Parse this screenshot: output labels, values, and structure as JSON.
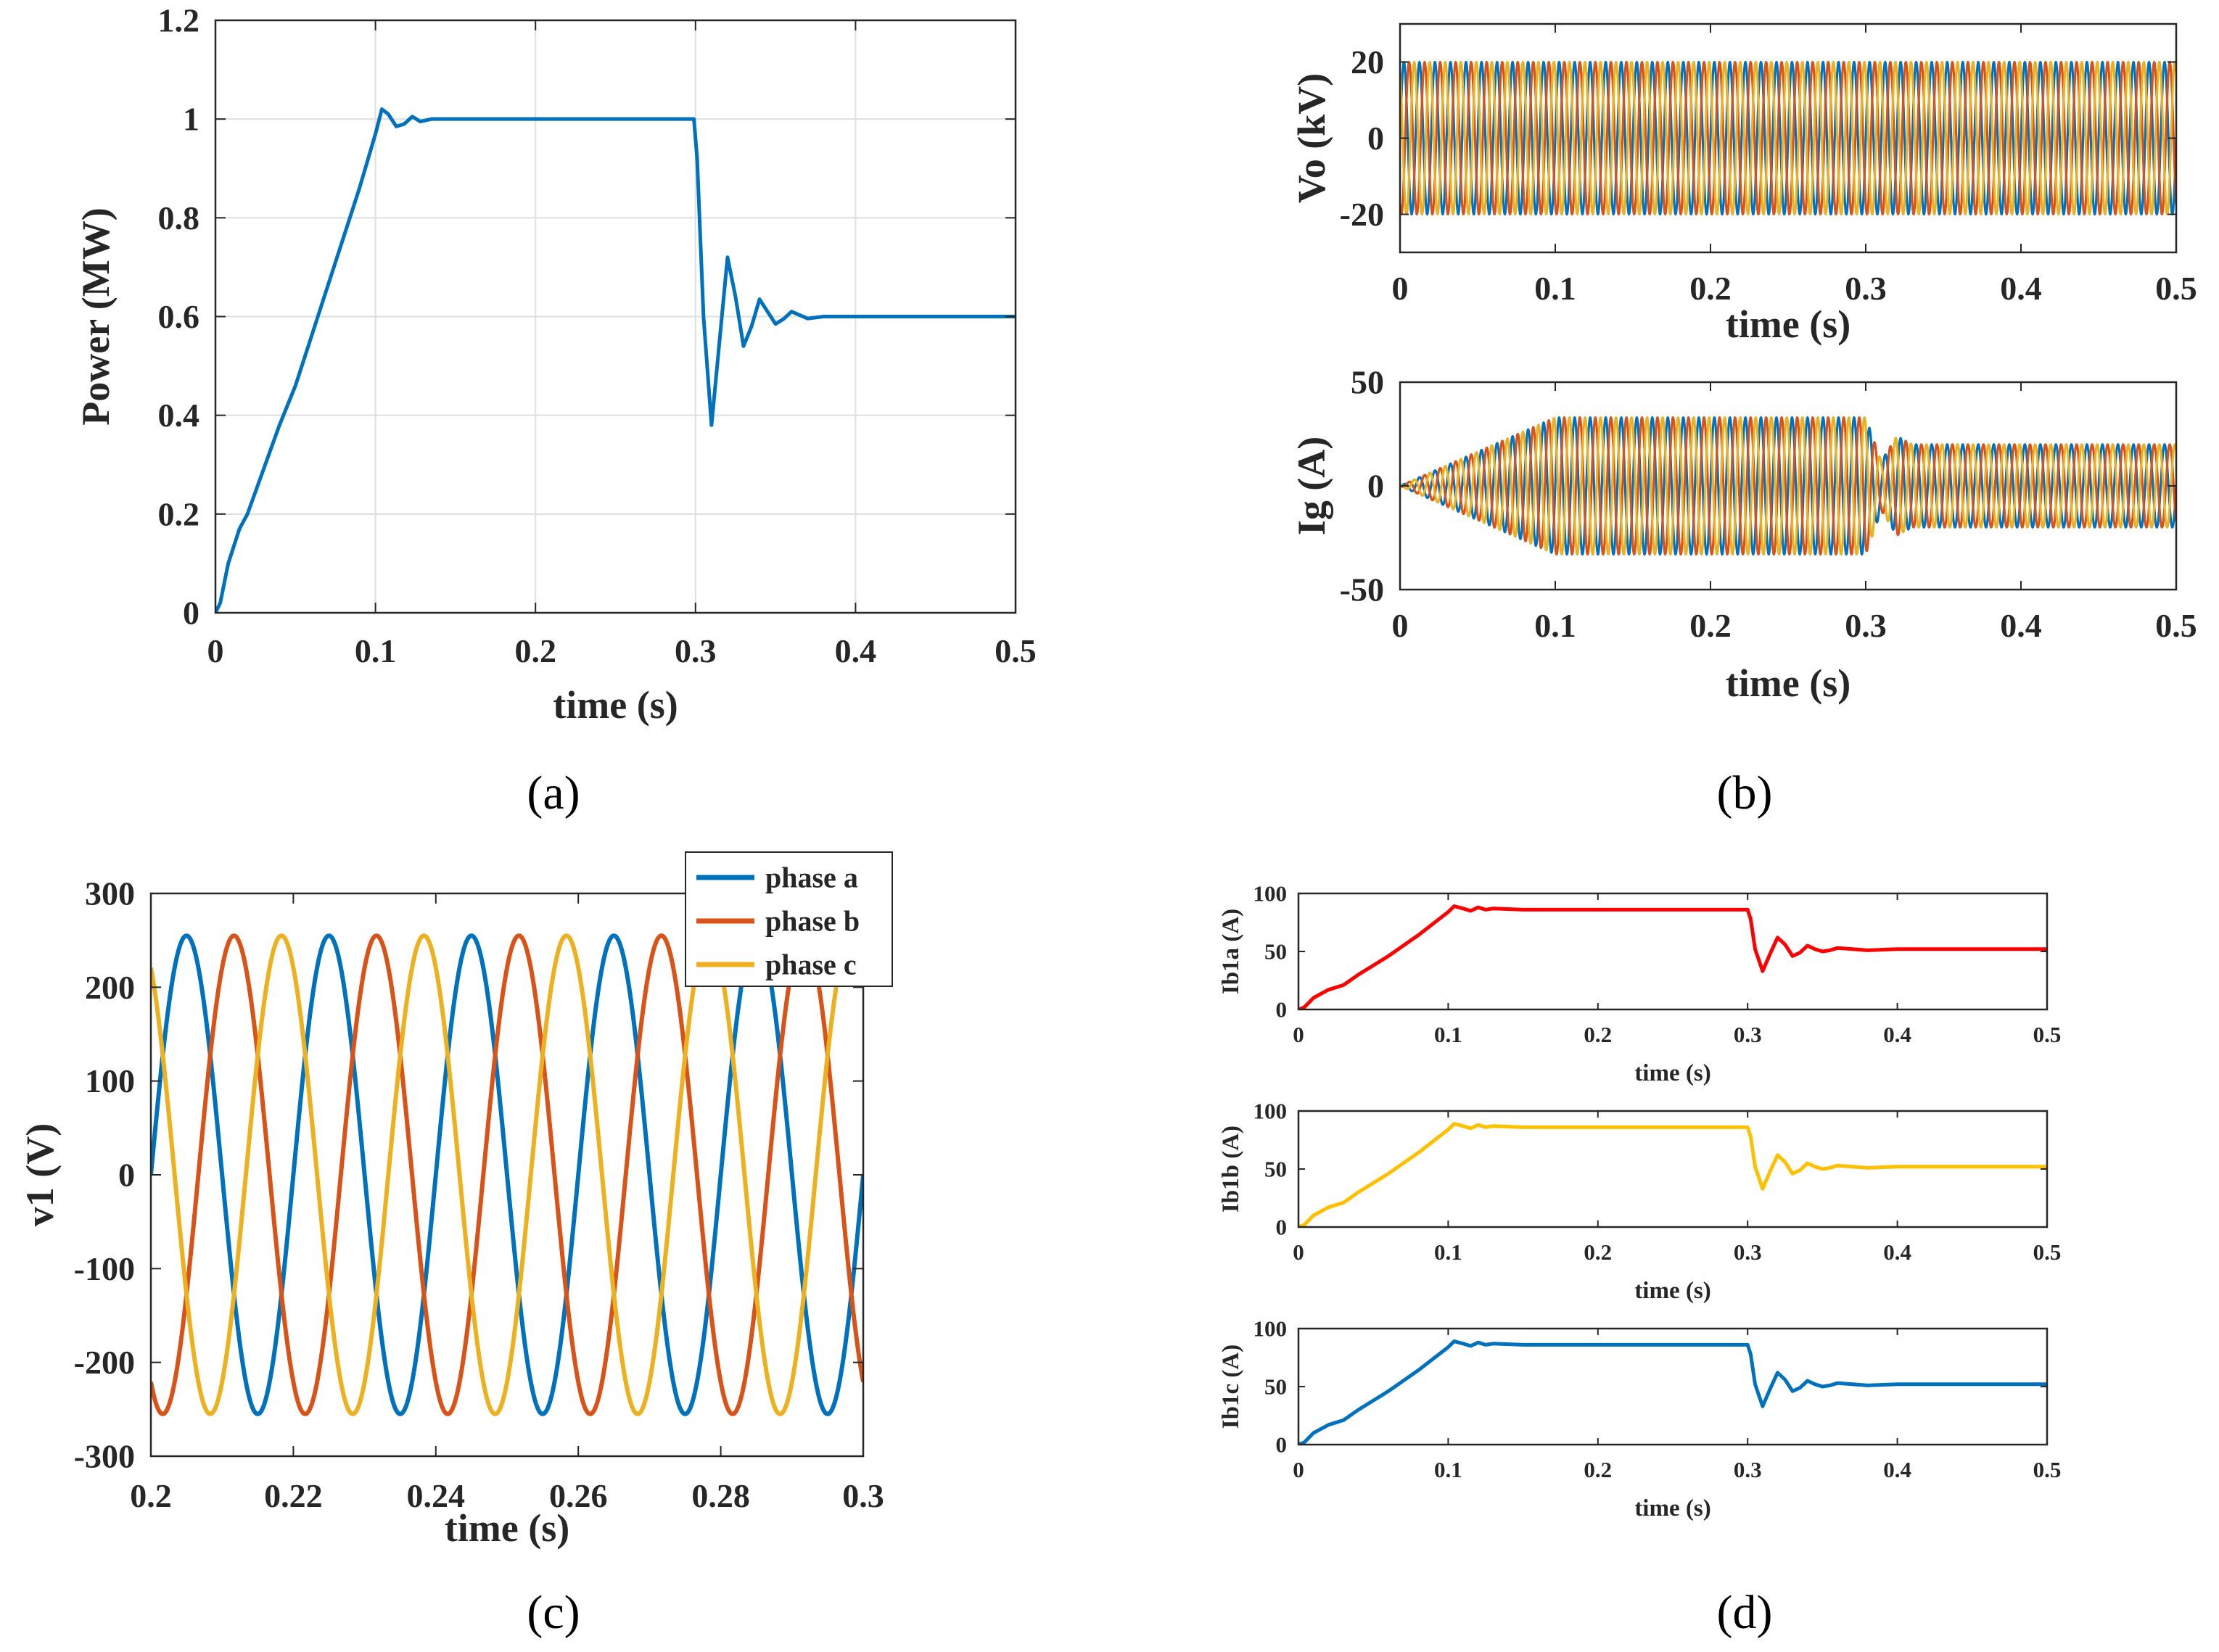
{
  "colors": {
    "blue": "#0072BD",
    "orange": "#D95319",
    "yellow": "#EDB120",
    "red": "#FF0000",
    "gold": "#FFC000",
    "grid": "#DFDFDF",
    "axis": "#262626"
  },
  "chart_data": [
    {
      "id": "a",
      "caption": "(a)",
      "type": "line",
      "xlabel": "time (s)",
      "ylabel": "Power (MW)",
      "xlim": [
        0,
        0.5
      ],
      "ylim": [
        0,
        1.2
      ],
      "xticks": [
        "0",
        "0.1",
        "0.2",
        "0.3",
        "0.4",
        "0.5"
      ],
      "yticks": [
        "0",
        "0.2",
        "0.4",
        "0.6",
        "0.8",
        "1",
        "1.2"
      ],
      "grid": true,
      "series": [
        {
          "name": "Power",
          "color": "#0072BD",
          "x": [
            0,
            0.003,
            0.008,
            0.015,
            0.02,
            0.03,
            0.04,
            0.05,
            0.06,
            0.07,
            0.08,
            0.09,
            0.1,
            0.104,
            0.108,
            0.113,
            0.118,
            0.123,
            0.128,
            0.135,
            0.145,
            0.16,
            0.2,
            0.25,
            0.299,
            0.301,
            0.305,
            0.31,
            0.315,
            0.32,
            0.325,
            0.33,
            0.335,
            0.34,
            0.345,
            0.35,
            0.355,
            0.36,
            0.365,
            0.37,
            0.38,
            0.39,
            0.4,
            0.42,
            0.45,
            0.5
          ],
          "y": [
            0,
            0.02,
            0.1,
            0.17,
            0.2,
            0.29,
            0.38,
            0.46,
            0.56,
            0.66,
            0.76,
            0.86,
            0.97,
            1.02,
            1.01,
            0.985,
            0.99,
            1.005,
            0.995,
            1.0,
            1.0,
            1.0,
            1.0,
            1.0,
            1.0,
            0.92,
            0.6,
            0.38,
            0.55,
            0.72,
            0.64,
            0.54,
            0.58,
            0.635,
            0.61,
            0.585,
            0.595,
            0.61,
            0.603,
            0.596,
            0.6,
            0.6,
            0.6,
            0.6,
            0.6,
            0.6
          ]
        }
      ]
    },
    {
      "id": "b1",
      "type": "line",
      "xlabel": "time (s)",
      "ylabel": "Vo (kV)",
      "xlim": [
        0,
        0.5
      ],
      "ylim": [
        -30,
        30
      ],
      "xticks": [
        "0",
        "0.1",
        "0.2",
        "0.3",
        "0.4",
        "0.5"
      ],
      "yticks": [
        "-20",
        "0",
        "20"
      ],
      "grid": false,
      "signal": {
        "kind": "three-phase-sine",
        "frequency_hz": 100,
        "amplitude_kv": 20
      },
      "series": [
        {
          "name": "phase a",
          "color": "#0072BD"
        },
        {
          "name": "phase b",
          "color": "#D95319"
        },
        {
          "name": "phase c",
          "color": "#EDB120"
        }
      ]
    },
    {
      "id": "b2",
      "caption": "(b)",
      "type": "line",
      "xlabel": "time (s)",
      "ylabel": "Ig (A)",
      "xlim": [
        0,
        0.5
      ],
      "ylim": [
        -50,
        50
      ],
      "xticks": [
        "0",
        "0.1",
        "0.2",
        "0.3",
        "0.4",
        "0.5"
      ],
      "yticks": [
        "-50",
        "0",
        "50"
      ],
      "grid": false,
      "signal": {
        "kind": "three-phase-sine",
        "frequency_hz": 100,
        "amplitude_envelope": {
          "t": [
            0,
            0.1,
            0.3,
            0.31,
            0.32,
            0.33,
            0.5
          ],
          "a": [
            0,
            33,
            33,
            12,
            24,
            20,
            20
          ]
        }
      },
      "series": [
        {
          "name": "phase a",
          "color": "#0072BD"
        },
        {
          "name": "phase b",
          "color": "#D95319"
        },
        {
          "name": "phase c",
          "color": "#EDB120"
        }
      ]
    },
    {
      "id": "c",
      "caption": "(c)",
      "type": "line",
      "xlabel": "time (s)",
      "ylabel": "v1 (V)",
      "xlim": [
        0.2,
        0.3
      ],
      "ylim": [
        -300,
        300
      ],
      "xticks": [
        "0.2",
        "0.22",
        "0.24",
        "0.26",
        "0.28",
        "0.3"
      ],
      "yticks": [
        "-300",
        "-200",
        "-100",
        "0",
        "100",
        "200",
        "300"
      ],
      "grid": false,
      "legend": {
        "position": "top-right",
        "entries": [
          "phase a",
          "phase b",
          "phase c"
        ]
      },
      "signal": {
        "kind": "three-phase-sine",
        "frequency_hz": 50,
        "amplitude_v": 255
      },
      "series": [
        {
          "name": "phase a",
          "color": "#0072BD"
        },
        {
          "name": "phase b",
          "color": "#D95319"
        },
        {
          "name": "phase c",
          "color": "#EDB120"
        }
      ]
    },
    {
      "id": "d1",
      "type": "line",
      "xlabel": "time (s)",
      "ylabel": "Ib1a (A)",
      "xlim": [
        0,
        0.5
      ],
      "ylim": [
        0,
        100
      ],
      "xticks": [
        "0",
        "0.1",
        "0.2",
        "0.3",
        "0.4",
        "0.5"
      ],
      "yticks": [
        "0",
        "50",
        "100"
      ],
      "grid": false,
      "series": [
        {
          "name": "Ib1a",
          "color": "#FF0000",
          "x": [
            0,
            0.004,
            0.01,
            0.02,
            0.03,
            0.04,
            0.06,
            0.08,
            0.1,
            0.104,
            0.11,
            0.115,
            0.12,
            0.125,
            0.13,
            0.15,
            0.2,
            0.25,
            0.3,
            0.302,
            0.305,
            0.31,
            0.315,
            0.32,
            0.325,
            0.33,
            0.335,
            0.34,
            0.345,
            0.35,
            0.355,
            0.36,
            0.37,
            0.38,
            0.4,
            0.45,
            0.5
          ],
          "y": [
            0,
            2,
            10,
            17,
            21,
            30,
            46,
            64,
            84,
            89,
            87,
            85,
            88,
            86,
            87,
            86,
            86,
            86,
            86,
            78,
            52,
            33,
            48,
            62,
            56,
            46,
            49,
            55,
            52,
            50,
            51,
            53,
            52,
            51,
            52,
            52,
            52
          ]
        }
      ]
    },
    {
      "id": "d2",
      "type": "line",
      "xlabel": "time (s)",
      "ylabel": "Ib1b (A)",
      "xlim": [
        0,
        0.5
      ],
      "ylim": [
        0,
        100
      ],
      "xticks": [
        "0",
        "0.1",
        "0.2",
        "0.3",
        "0.4",
        "0.5"
      ],
      "yticks": [
        "0",
        "50",
        "100"
      ],
      "grid": false,
      "series": [
        {
          "name": "Ib1b",
          "color": "#FFC000",
          "x": [
            0,
            0.004,
            0.01,
            0.02,
            0.03,
            0.04,
            0.06,
            0.08,
            0.1,
            0.104,
            0.11,
            0.115,
            0.12,
            0.125,
            0.13,
            0.15,
            0.2,
            0.25,
            0.3,
            0.302,
            0.305,
            0.31,
            0.315,
            0.32,
            0.325,
            0.33,
            0.335,
            0.34,
            0.345,
            0.35,
            0.355,
            0.36,
            0.37,
            0.38,
            0.4,
            0.45,
            0.5
          ],
          "y": [
            0,
            2,
            10,
            17,
            21,
            30,
            46,
            64,
            84,
            89,
            87,
            85,
            88,
            86,
            87,
            86,
            86,
            86,
            86,
            78,
            52,
            33,
            48,
            62,
            56,
            46,
            49,
            55,
            52,
            50,
            51,
            53,
            52,
            51,
            52,
            52,
            52
          ]
        }
      ]
    },
    {
      "id": "d3",
      "caption": "(d)",
      "type": "line",
      "xlabel": "time (s)",
      "ylabel": "Ib1c (A)",
      "xlim": [
        0,
        0.5
      ],
      "ylim": [
        0,
        100
      ],
      "xticks": [
        "0",
        "0.1",
        "0.2",
        "0.3",
        "0.4",
        "0.5"
      ],
      "yticks": [
        "0",
        "50",
        "100"
      ],
      "grid": false,
      "series": [
        {
          "name": "Ib1c",
          "color": "#0072BD",
          "x": [
            0,
            0.004,
            0.01,
            0.02,
            0.03,
            0.04,
            0.06,
            0.08,
            0.1,
            0.104,
            0.11,
            0.115,
            0.12,
            0.125,
            0.13,
            0.15,
            0.2,
            0.25,
            0.3,
            0.302,
            0.305,
            0.31,
            0.315,
            0.32,
            0.325,
            0.33,
            0.335,
            0.34,
            0.345,
            0.35,
            0.355,
            0.36,
            0.37,
            0.38,
            0.4,
            0.45,
            0.5
          ],
          "y": [
            0,
            2,
            10,
            17,
            21,
            30,
            46,
            64,
            84,
            89,
            87,
            85,
            88,
            86,
            87,
            86,
            86,
            86,
            86,
            78,
            52,
            33,
            48,
            62,
            56,
            46,
            49,
            55,
            52,
            50,
            51,
            53,
            52,
            51,
            52,
            52,
            52
          ]
        }
      ]
    }
  ]
}
